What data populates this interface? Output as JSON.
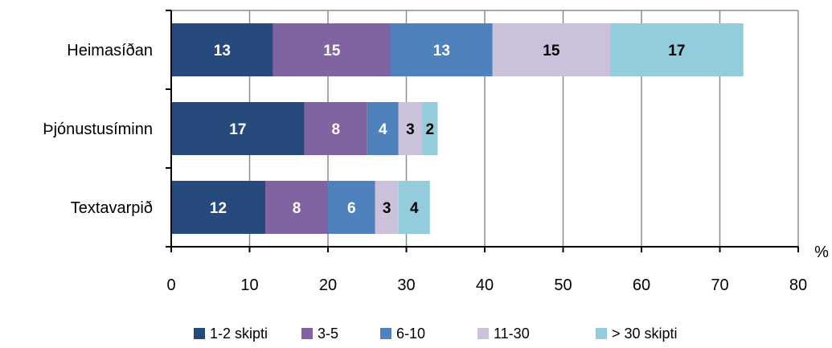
{
  "chart_data": {
    "type": "bar",
    "orientation": "horizontal",
    "stacked": true,
    "categories": [
      "Heimasíðan",
      "Þjónustusíminn",
      "Textavarpið"
    ],
    "series": [
      {
        "name": "1-2 skipti",
        "values": [
          13,
          17,
          12
        ],
        "color": "#254a7b",
        "label_color": "#ffffff"
      },
      {
        "name": "3-5",
        "values": [
          15,
          8,
          8
        ],
        "color": "#8064a2",
        "label_color": "#ffffff"
      },
      {
        "name": "6-10",
        "values": [
          13,
          4,
          6
        ],
        "color": "#4f81bd",
        "label_color": "#ffffff"
      },
      {
        "name": "11-30",
        "values": [
          15,
          3,
          3
        ],
        "color": "#ccc1da",
        "label_color": "#000000"
      },
      {
        "name": "> 30 skipti",
        "values": [
          17,
          2,
          4
        ],
        "color": "#93cddd",
        "label_color": "#000000"
      }
    ],
    "xlim": [
      0,
      80
    ],
    "xticks": [
      0,
      10,
      20,
      30,
      40,
      50,
      60,
      70,
      80
    ],
    "xlabel": "%",
    "title": "",
    "grid": true,
    "legend": "bottom"
  }
}
